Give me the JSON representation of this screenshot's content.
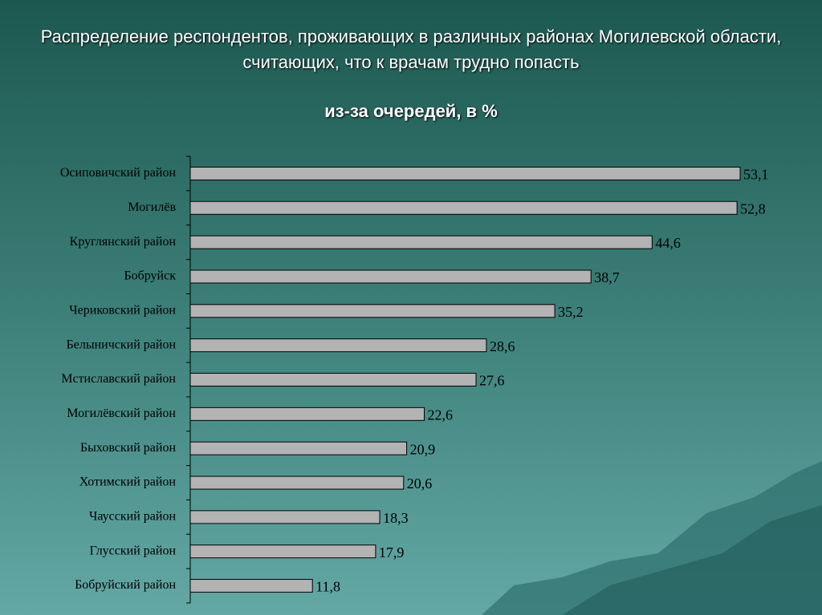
{
  "chart_data": {
    "type": "hbar",
    "title": "Распределение респондентов, проживающих в различных районах Могилевской области, считающих, что к врачам трудно попасть",
    "subtitle": "из-за очередей, в %",
    "categories": [
      "Осиповичский район",
      "Могилёв",
      "Круглянский район",
      "Бобруйск",
      "Чериковский район",
      "Белыничский район",
      "Мстиславский район",
      "Могилёвский район",
      "Быховский район",
      "Хотимский район",
      "Чаусский район",
      "Глусский район",
      "Бобруйский район"
    ],
    "values": [
      53.1,
      52.8,
      44.6,
      38.7,
      35.2,
      28.6,
      27.6,
      22.6,
      20.9,
      20.6,
      18.3,
      17.9,
      11.8
    ],
    "value_labels": [
      "53,1",
      "52,8",
      "44,6",
      "38,7",
      "35,2",
      "28,6",
      "27,6",
      "22,6",
      "20,9",
      "20,6",
      "18,3",
      "17,9",
      "11,8"
    ],
    "color": "#b3b3b3"
  }
}
